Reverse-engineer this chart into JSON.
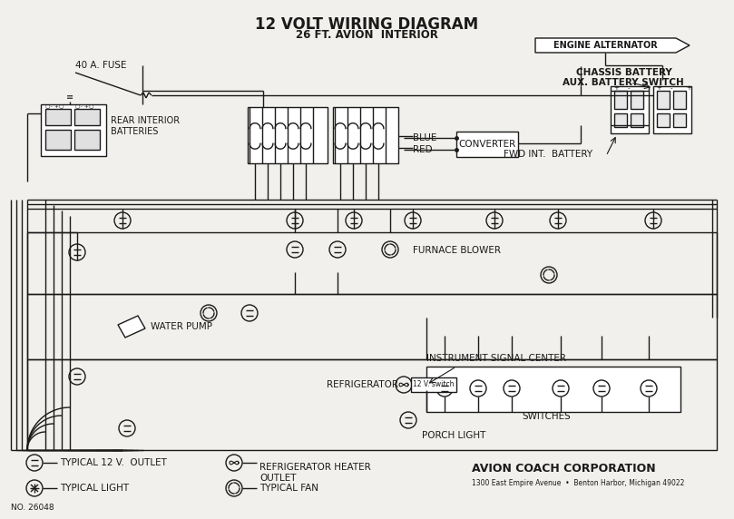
{
  "title": "12 VOLT WIRING DIAGRAM",
  "subtitle": "26 FT. AVION  INTERIOR",
  "bg_color": "#f2f0ec",
  "line_color": "#1a1a1a",
  "title_fontsize": 12,
  "subtitle_fontsize": 8.5,
  "footer_left": "NO. 26048",
  "footer_company": "AVION COACH CORPORATION",
  "footer_address": "1300 East Empire Avenue  •  Benton Harbor, Michigan 49022",
  "labels": {
    "fuse": "40 A. FUSE",
    "rear_bat": "REAR INTERIOR\nBATTERIES",
    "blue": "BLUE",
    "red": "RED",
    "converter": "CONVERTER",
    "engine_alt": "ENGINE ALTERNATOR",
    "chassis_bat": "CHASSIS BATTERY",
    "aux_switch": "AUX. BATTERY SWITCH",
    "fwd_bat": "FWD INT.  BATTERY",
    "furnace": "FURNACE BLOWER",
    "water_pump": "WATER PUMP",
    "refrigerator": "REFRIGERATOR",
    "instrument": "INSTRUMENT SIGNAL CENTER",
    "switches": "SWITCHES",
    "porch_light": "PORCH LIGHT",
    "12v_switch": "12 V. switch",
    "legend1": "TYPICAL 12 V.  OUTLET",
    "legend2": "TYPICAL LIGHT",
    "legend3": "REFRIGERATOR HEATER\nOUTLET",
    "legend4": "TYPICAL FAN"
  }
}
